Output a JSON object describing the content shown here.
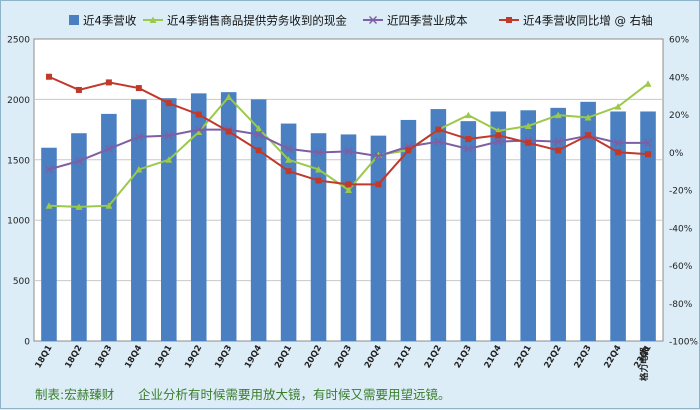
{
  "chart_data": {
    "type": "bar",
    "categories": [
      "18Q1",
      "18Q2",
      "18Q3",
      "18Q4",
      "19Q1",
      "19Q2",
      "19Q3",
      "19Q4",
      "20Q1",
      "20Q2",
      "20Q3",
      "20Q4",
      "21Q1",
      "21Q2",
      "21Q3",
      "21Q4",
      "22Q1",
      "22Q2",
      "22Q3",
      "22Q4",
      "23Q1"
    ],
    "company_label": "格力电器",
    "left_axis": {
      "min": 0,
      "max": 2500,
      "ticks": [
        0,
        500,
        1000,
        1500,
        2000,
        2500
      ],
      "tick_labels": [
        "0",
        "500",
        "1000",
        "1500",
        "2000",
        "2500"
      ]
    },
    "right_axis": {
      "min": -100,
      "max": 60,
      "ticks": [
        -100,
        -80,
        -60,
        -40,
        -20,
        0,
        20,
        40,
        60
      ],
      "tick_labels": [
        "-100%",
        "-80%",
        "-60%",
        "-40%",
        "-20%",
        "0%",
        "20%",
        "40%",
        "60%"
      ]
    },
    "grid": true,
    "legend_position": "top",
    "series": [
      {
        "name": "近4季营收",
        "type": "bar",
        "axis": "left",
        "color": "#4a7fc1",
        "values": [
          1600,
          1720,
          1880,
          2000,
          2010,
          2050,
          2060,
          2000,
          1800,
          1720,
          1710,
          1700,
          1830,
          1920,
          1820,
          1900,
          1910,
          1930,
          1980,
          1900,
          1900
        ]
      },
      {
        "name": "近4季销售商品提供劳务收到的现金",
        "type": "line",
        "axis": "left",
        "color": "#9bc94a",
        "marker": "triangle",
        "values": [
          1120,
          1110,
          1120,
          1420,
          1500,
          1730,
          2020,
          1760,
          1500,
          1420,
          1250,
          1540,
          1580,
          1750,
          1870,
          1740,
          1780,
          1870,
          1850,
          1940,
          2130
        ]
      },
      {
        "name": "近四季营业成本",
        "type": "line",
        "axis": "left",
        "color": "#7d5fa5",
        "marker": "x",
        "values": [
          1420,
          1490,
          1590,
          1690,
          1700,
          1750,
          1750,
          1710,
          1590,
          1560,
          1570,
          1530,
          1610,
          1650,
          1590,
          1650,
          1660,
          1650,
          1700,
          1640,
          1640
        ]
      },
      {
        "name": "近4季营收同比增 @ 右轴",
        "type": "line",
        "axis": "right",
        "color": "#c0392b",
        "marker": "square",
        "values": [
          40,
          33,
          37,
          34,
          26,
          20,
          11,
          1,
          -10,
          -15,
          -17,
          -17,
          1,
          12,
          7,
          9,
          5,
          1,
          9,
          0,
          -1
        ]
      }
    ]
  },
  "footer": {
    "text": "制表:宏赫臻财      企业分析有时候需要用放大镜，有时候又需要用望远镜。"
  }
}
